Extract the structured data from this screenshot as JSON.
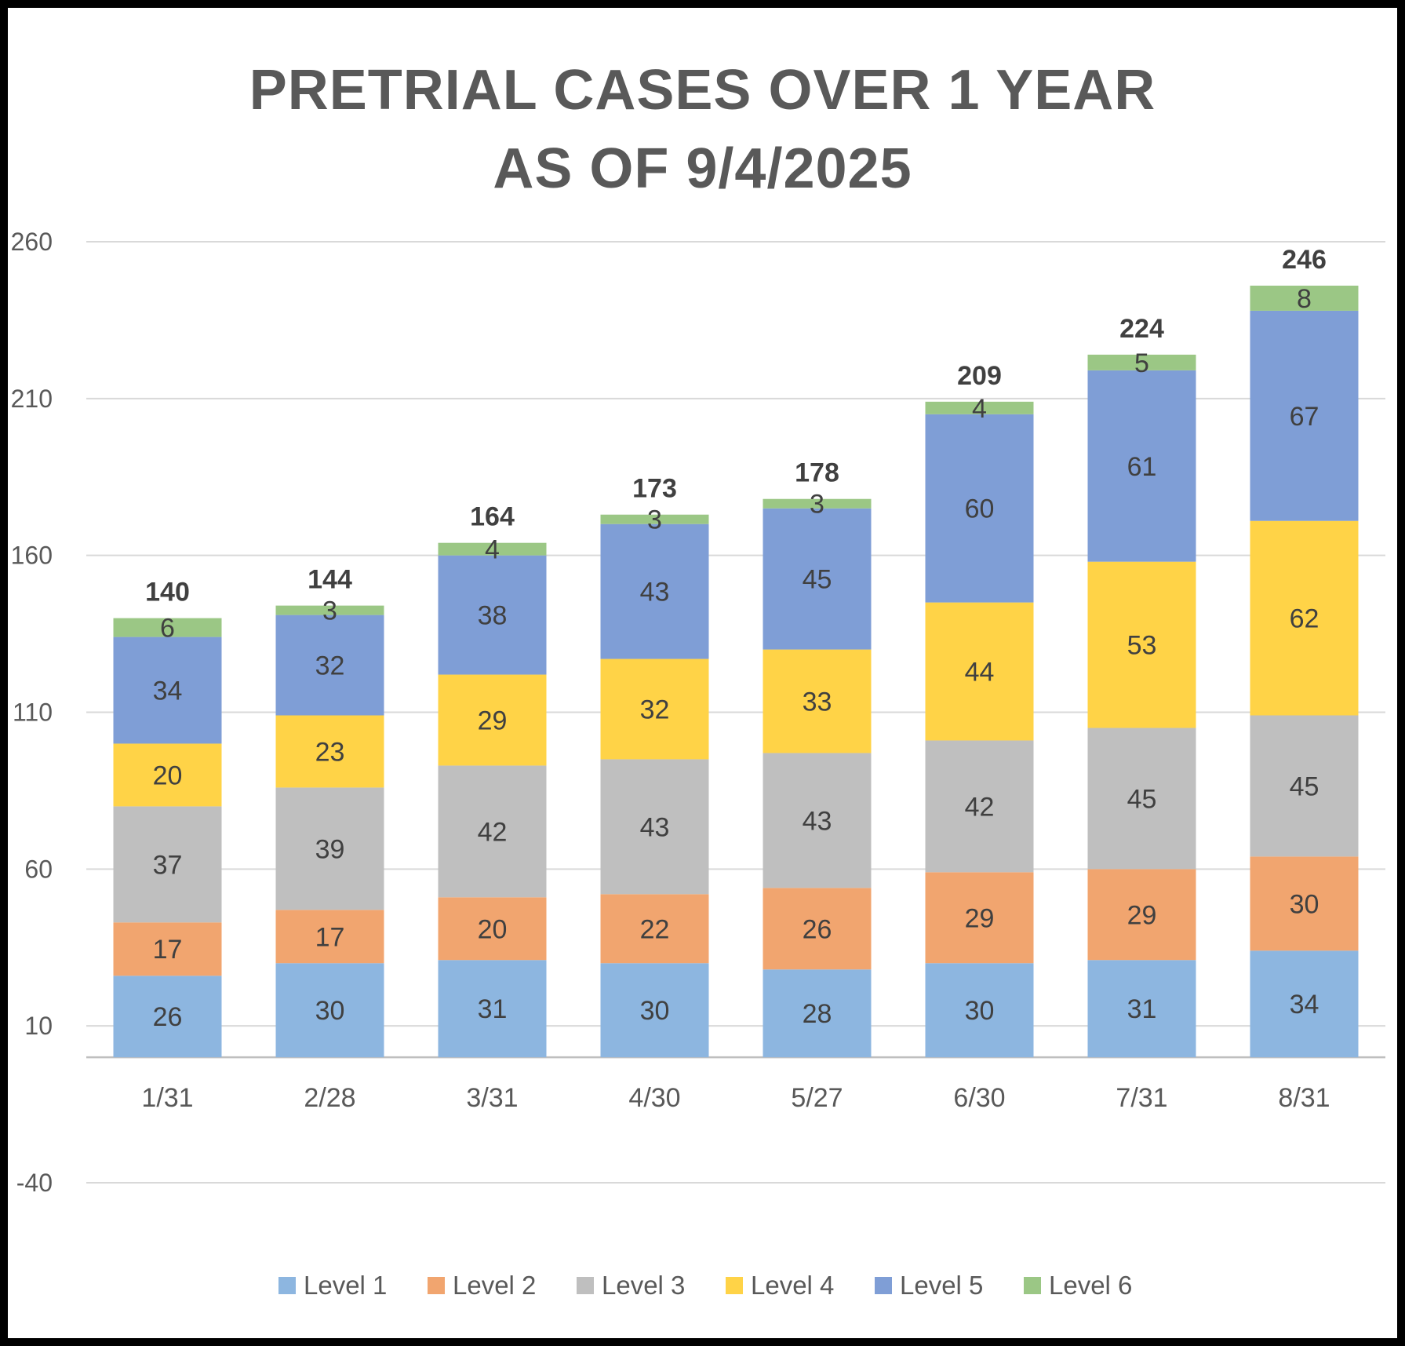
{
  "chart_data": {
    "type": "bar",
    "stacked": true,
    "title": [
      "PRETRIAL CASES OVER 1 YEAR",
      "AS OF 9/4/2025"
    ],
    "categories": [
      "1/31",
      "2/28",
      "3/31",
      "4/30",
      "5/27",
      "6/30",
      "7/31",
      "8/31"
    ],
    "series": [
      {
        "name": "Level 1",
        "color": "#8DB6E0",
        "values": [
          26,
          30,
          31,
          30,
          28,
          30,
          31,
          34
        ]
      },
      {
        "name": "Level 2",
        "color": "#F1A56F",
        "values": [
          17,
          17,
          20,
          22,
          26,
          29,
          29,
          30
        ]
      },
      {
        "name": "Level 3",
        "color": "#BFBFBF",
        "values": [
          37,
          39,
          42,
          43,
          43,
          42,
          45,
          45
        ]
      },
      {
        "name": "Level 4",
        "color": "#FFD347",
        "values": [
          20,
          23,
          29,
          32,
          33,
          44,
          53,
          62
        ]
      },
      {
        "name": "Level 5",
        "color": "#7F9ED6",
        "values": [
          34,
          32,
          38,
          43,
          45,
          60,
          61,
          67
        ]
      },
      {
        "name": "Level 6",
        "color": "#9BC785",
        "values": [
          6,
          3,
          4,
          3,
          3,
          4,
          5,
          8
        ]
      }
    ],
    "totals": [
      140,
      144,
      164,
      173,
      178,
      209,
      224,
      246
    ],
    "y_ticks": [
      -40,
      10,
      60,
      110,
      160,
      210,
      260
    ],
    "ylim": [
      -40,
      260
    ],
    "baseline": 0,
    "xlabel": "",
    "ylabel": "",
    "grid": true,
    "legend_position": "bottom"
  }
}
